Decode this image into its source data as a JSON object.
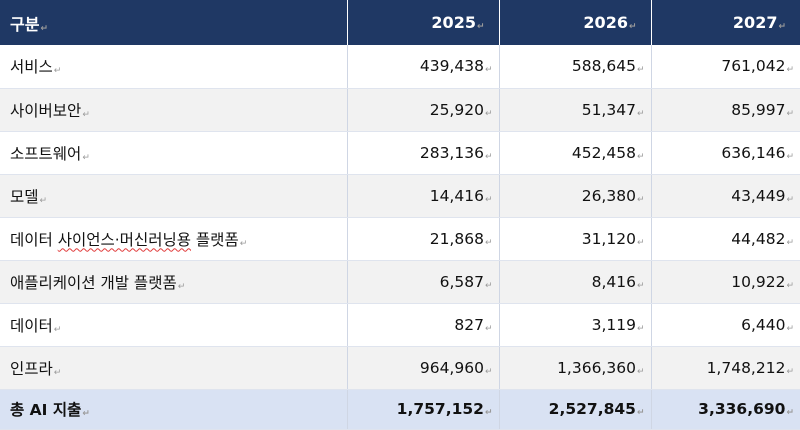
{
  "table": {
    "headers": [
      "구분",
      "2025",
      "2026",
      "2027"
    ],
    "rows": [
      {
        "label": "서비스",
        "values": [
          "439,438",
          "588,645",
          "761,042"
        ]
      },
      {
        "label": "사이버보안",
        "values": [
          "25,920",
          "51,347",
          "85,997"
        ]
      },
      {
        "label": "소프트웨어",
        "values": [
          "283,136",
          "452,458",
          "636,146"
        ]
      },
      {
        "label": "모델",
        "values": [
          "14,416",
          "26,380",
          "43,449"
        ]
      },
      {
        "label_prefix": "데이터 ",
        "label_underlined": "사이언스·머신러닝용",
        "label_suffix": " 플랫폼",
        "values": [
          "21,868",
          "31,120",
          "44,482"
        ]
      },
      {
        "label": "애플리케이션 개발 플랫폼",
        "values": [
          "6,587",
          "8,416",
          "10,922"
        ]
      },
      {
        "label": "데이터",
        "values": [
          "827",
          "3,119",
          "6,440"
        ]
      },
      {
        "label": "인프라",
        "values": [
          "964,960",
          "1,366,360",
          "1,748,212"
        ]
      }
    ],
    "total": {
      "label": "총 AI 지출",
      "values": [
        "1,757,152",
        "2,527,845",
        "3,336,690"
      ]
    },
    "paragraph_mark": "↵"
  },
  "colors": {
    "header_bg": "#1f3864",
    "header_text": "#ffffff",
    "stripe": "#f2f2f2",
    "total_bg": "#d9e2f3"
  }
}
